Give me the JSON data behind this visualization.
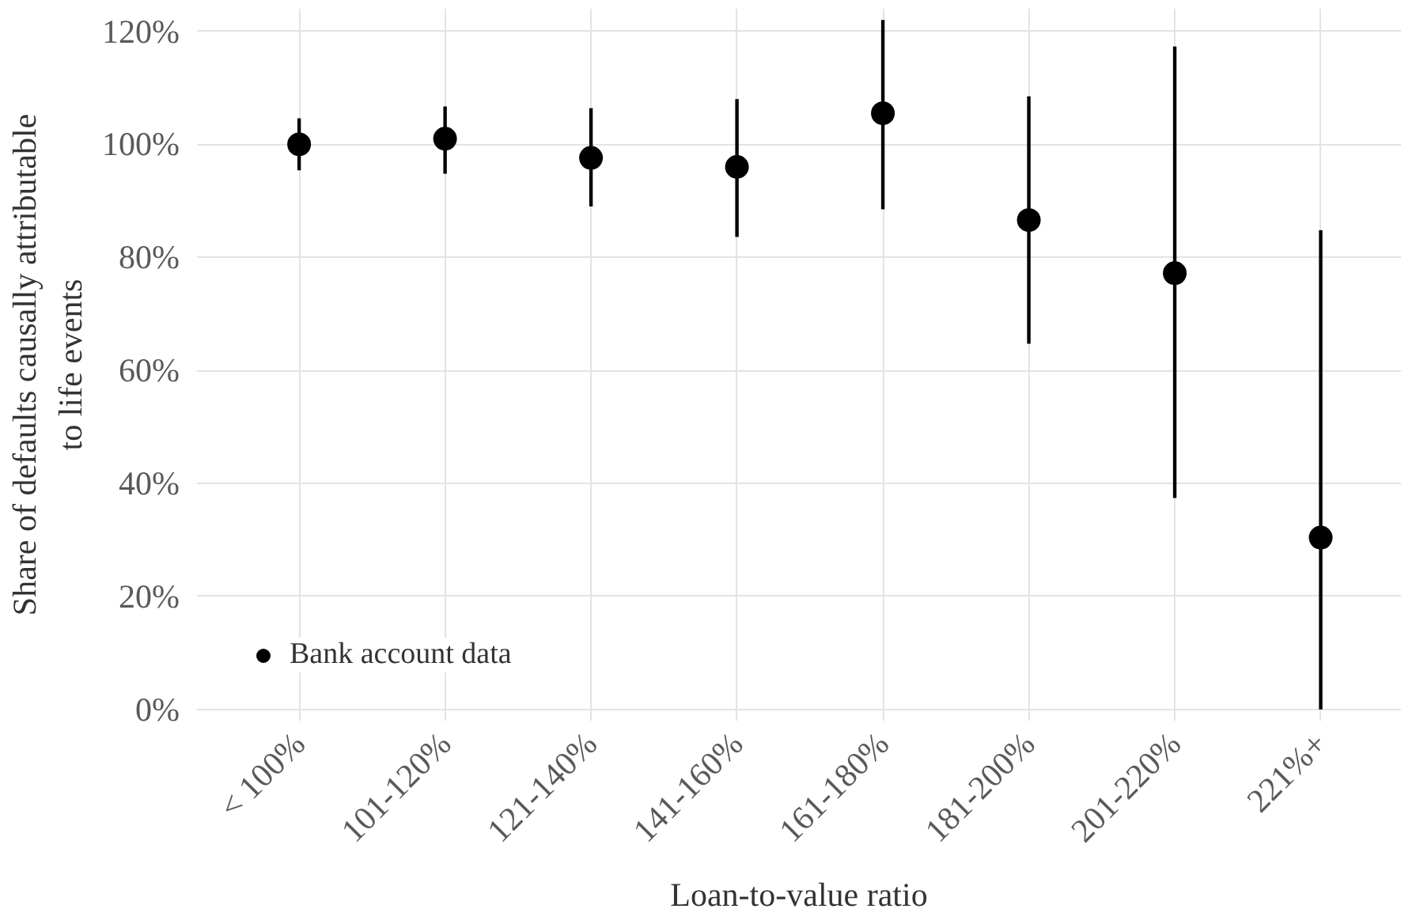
{
  "chart_data": {
    "type": "scatter",
    "xlabel": "Loan-to-value ratio",
    "ylabel": "Share of defaults causally attributable to life events",
    "categories": [
      "< 100%",
      "101-120%",
      "121-140%",
      "141-160%",
      "161-180%",
      "181-200%",
      "201-220%",
      "221%+"
    ],
    "series": [
      {
        "name": "Bank account data",
        "color": "#000000",
        "values": [
          100,
          101,
          97.6,
          96,
          105.5,
          86.6,
          77.2,
          30.4
        ],
        "errors": [
          [
            95.4,
            104.6
          ],
          [
            94.8,
            106.7
          ],
          [
            89,
            106.4
          ],
          [
            83.6,
            108
          ],
          [
            88.5,
            122
          ],
          [
            64.7,
            108.5
          ],
          [
            37.4,
            117.3
          ],
          [
            0,
            84.8
          ]
        ]
      }
    ],
    "ylim": [
      -2,
      124
    ],
    "yticks": [
      {
        "value": 0,
        "label": "0%"
      },
      {
        "value": 20,
        "label": "20%"
      },
      {
        "value": 40,
        "label": "40%"
      },
      {
        "value": 60,
        "label": "60%"
      },
      {
        "value": 80,
        "label": "80%"
      },
      {
        "value": 100,
        "label": "100%"
      },
      {
        "value": 120,
        "label": "120%"
      }
    ],
    "grid": true,
    "legend": "bottom left",
    "marker": "circle"
  }
}
